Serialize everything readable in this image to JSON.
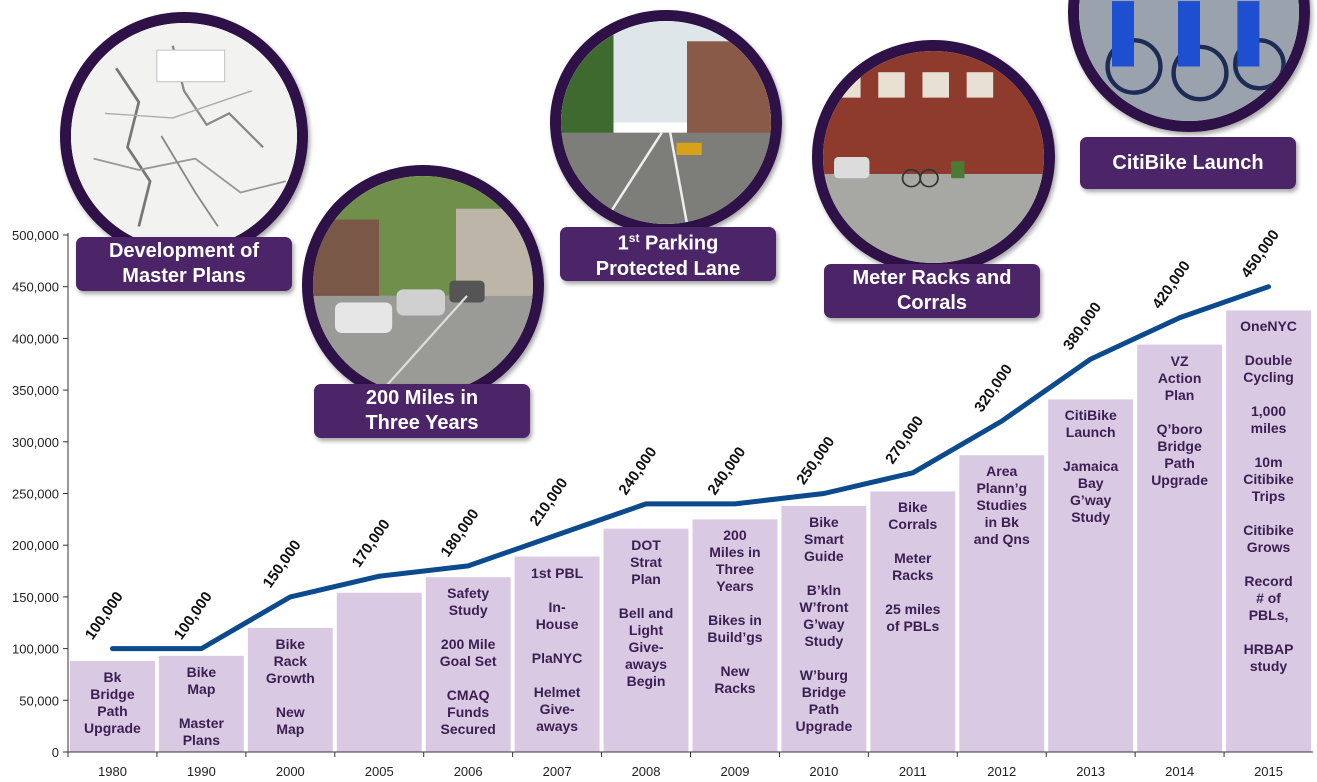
{
  "chart_data": {
    "type": "bar+line",
    "categories": [
      "1980",
      "1990",
      "2000",
      "2005",
      "2006",
      "2007",
      "2008",
      "2009",
      "2010",
      "2011",
      "2012",
      "2013",
      "2014",
      "2015"
    ],
    "values": [
      100000,
      100000,
      150000,
      170000,
      180000,
      210000,
      240000,
      240000,
      250000,
      270000,
      320000,
      380000,
      420000,
      450000
    ],
    "data_labels": [
      "100,000",
      "100,000",
      "150,000",
      "170,000",
      "180,000",
      "210,000",
      "240,000",
      "240,000",
      "250,000",
      "270,000",
      "320,000",
      "380,000",
      "420,000",
      "450,000"
    ],
    "bar_values": [
      88000,
      93000,
      120000,
      154000,
      169000,
      189000,
      216000,
      225000,
      238000,
      252000,
      287000,
      341000,
      394000,
      427000
    ],
    "yticks": [
      "0",
      "50,000",
      "100,000",
      "150,000",
      "200,000",
      "250,000",
      "300,000",
      "350,000",
      "400,000",
      "450,000",
      "500,000"
    ],
    "ylim": [
      0,
      500000
    ],
    "line_color": "#0b4a8c",
    "bar_color": "#d9c9e3",
    "bar_texts": [
      "Bk\nBridge\nPath\nUpgrade",
      "Bike\nMap\n\nMaster\nPlans",
      "Bike\nRack\nGrowth\n\nNew\nMap",
      "",
      "Safety\nStudy\n\n200 Mile\nGoal Set\n\nCMAQ\nFunds\nSecured",
      "1st PBL\n\nIn-\nHouse\n\nPlaNYC\n\nHelmet\nGive-\naways",
      "DOT\nStrat\nPlan\n\nBell and\nLight\nGive-\naways\nBegin",
      "200\nMiles in\nThree\nYears\n\nBikes in\nBuild’gs\n\nNew\nRacks",
      "Bike\nSmart\nGuide\n\nB’kln\nW’front\nG’way\nStudy\n\nW’burg\nBridge\nPath\nUpgrade",
      "Bike\nCorrals\n\nMeter\nRacks\n\n25 miles\nof PBLs",
      "Area\nPlann’g\nStudies\nin Bk\nand Qns",
      "CitiBike\nLaunch\n\nJamaica\nBay\nG’way\nStudy",
      "VZ\nAction\nPlan\n\nQ’boro\nBridge\nPath\nUpgrade",
      "OneNYC\n\nDouble\nCycling\n\n1,000\nmiles\n\n10m\nCitibike\nTrips\n\nCitibike\nGrows\n\nRecord\n# of\nPBLs,\n\nHRBAP\nstudy"
    ]
  },
  "callouts": {
    "master_plans": "Development of Master Plans",
    "two_hundred_miles": "200 Miles in Three Years",
    "parking_protected_sup": "st",
    "parking_protected_num": "1",
    "parking_protected_rest": " Parking Protected Lane",
    "meter_racks": "Meter Racks and Corrals",
    "citibike": "CitiBike Launch"
  },
  "colors": {
    "callout_bg": "#4b2567",
    "photo_ring": "#2e1147"
  }
}
